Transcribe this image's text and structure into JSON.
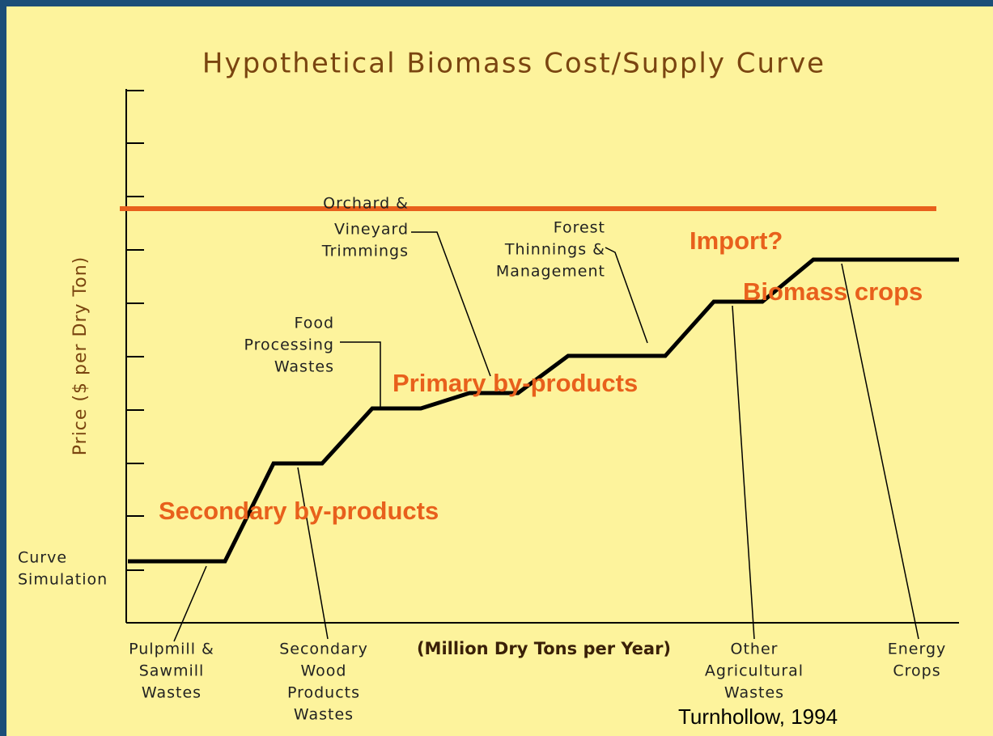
{
  "title": "Hypothetical Biomass Cost/Supply Curve",
  "y_axis_label": "Price ($ per Dry Ton)",
  "x_axis_label": "(Million Dry Tons per Year)",
  "source": "Turnhollow, 1994",
  "regions": [
    "Import?",
    "Biomass crops",
    "Primary by-products",
    "Secondary by-products"
  ],
  "annotations": {
    "curve": [
      "Curve",
      "Simulation"
    ],
    "pulpmill": [
      "Pulpmill &",
      "Sawmill",
      "Wastes"
    ],
    "secondary_wood": [
      "Secondary",
      "Wood",
      "Products",
      "Wastes"
    ],
    "food": [
      "Food",
      "Processing",
      "Wastes"
    ],
    "orchard": [
      "Orchard &",
      "Vineyard",
      "Trimmings"
    ],
    "forest": [
      "Forest",
      "Thinnings &",
      "Management"
    ],
    "other_ag": [
      "Other",
      "Agricultural",
      "Wastes"
    ],
    "energy": [
      "Energy",
      "Crops"
    ]
  }
}
